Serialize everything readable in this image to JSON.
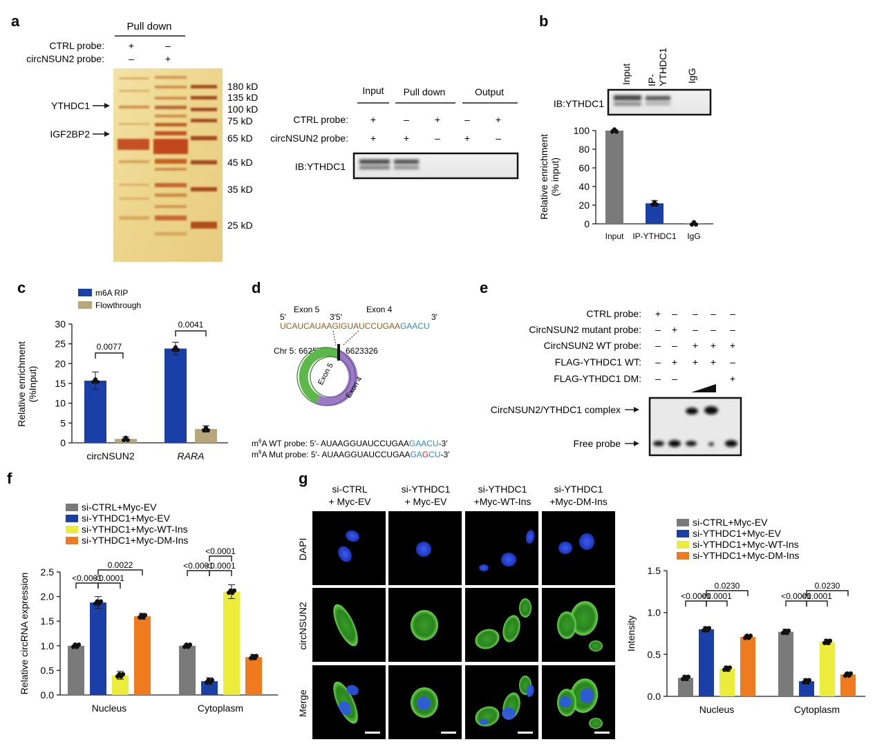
{
  "colors": {
    "gray": "#7a7a7a",
    "blue": "#1a3fa6",
    "yellow": "#ecec3a",
    "orange": "#f07b1f",
    "olive": "#b7a77a",
    "green": "#55c23a",
    "nucleus": "#2240d8",
    "seq_brown": "#9c5a1e",
    "seq_blue": "#2f86d6",
    "seq_red": "#e22222"
  },
  "panels": {
    "a": "a",
    "b": "b",
    "c": "c",
    "d": "d",
    "e": "e",
    "f": "f",
    "g": "g"
  },
  "a": {
    "pulldown_header": "Pull down",
    "ctrl_label": "CTRL probe:",
    "circ_label": "circNSUN2 probe:",
    "ctrl_signs": [
      "+",
      "–"
    ],
    "circ_signs": [
      "–",
      "+"
    ],
    "arrow_labels": [
      "YTHDC1",
      "IGF2BP2"
    ],
    "markers": [
      "180 kD",
      "135 kD",
      "100 kD",
      "75 kD",
      "65 kD",
      "45 kD",
      "35 kD",
      "25 kD"
    ],
    "blot_cols": [
      "Input",
      "Pull down",
      "Output"
    ],
    "blot_rows": [
      {
        "label": "CTRL probe:",
        "signs": [
          "+",
          "–",
          "+",
          "–",
          "+"
        ]
      },
      {
        "label": "circNSUN2 probe:",
        "signs": [
          "+",
          "+",
          "–",
          "+",
          "–"
        ]
      }
    ],
    "ib": "IB:YTHDC1"
  },
  "b": {
    "lanes": [
      "Input",
      "IP-\nYTHDC1",
      "IgG"
    ],
    "ib": "IB:YTHDC1",
    "chart_data": {
      "type": "bar",
      "categories": [
        "Input",
        "IP-YTHDC1",
        "IgG"
      ],
      "values": [
        100,
        22,
        0.5
      ],
      "ylabel": "Relative enrichment\n(% input)",
      "ylim": [
        0,
        100
      ],
      "yticks": [
        0,
        20,
        40,
        60,
        80,
        100
      ]
    }
  },
  "c": {
    "chart_data": {
      "type": "bar",
      "categories": [
        "circNSUN2",
        "RARA"
      ],
      "series": [
        {
          "name": "m6A RIP",
          "values": [
            15.7,
            23.8
          ]
        },
        {
          "name": "Flowthrough",
          "values": [
            1.0,
            3.5
          ]
        }
      ],
      "ylabel": "Relative enrichment\n(%Input)",
      "ylim": [
        0,
        30
      ],
      "yticks": [
        0,
        5,
        10,
        15,
        20,
        25,
        30
      ],
      "pvalues": [
        "0.0077",
        "0.0041"
      ]
    }
  },
  "d": {
    "exon5": "Exon 5",
    "exon4": "Exon 4",
    "p5": "5′",
    "p35": "3′5′",
    "p3": "3′",
    "seq_brown": "UCAUCAUAAGIGUAUCCUGAA",
    "seq_blue": "GAACU",
    "chr_left": "Chr 5: 6625782",
    "chr_right": "6623326",
    "ring_exon5": "Exon 5",
    "ring_exon4": "Exon 4",
    "wt_label_pre": "m",
    "wt_label_sup": "6",
    "wt_label_post": "A WT probe: 5′- AUAAGGUAUCCUGAA",
    "wt_blue": "GAACU",
    "wt_end": "-3′",
    "mut_label_post": "A Mut probe: 5′- AUAAGGUAUCCUGAA",
    "mut_ga": "GA",
    "mut_g": "G",
    "mut_cu": "CU",
    "mut_end": "-3′"
  },
  "e": {
    "rows": [
      {
        "label": "CTRL probe:",
        "signs": [
          "+",
          "–",
          "–",
          "–",
          "–"
        ]
      },
      {
        "label": "CircNSUN2 mutant probe:",
        "signs": [
          "–",
          "+",
          "–",
          "–",
          "–"
        ]
      },
      {
        "label": "CircNSUN2 WT probe:",
        "signs": [
          "–",
          "–",
          "+",
          "+",
          "+"
        ]
      },
      {
        "label": "FLAG-YTHDC1 WT:",
        "signs": [
          "–",
          "+",
          "+",
          "+",
          "–"
        ]
      },
      {
        "label": "FLAG-YTHDC1 DM:",
        "signs": [
          "–",
          "–",
          "",
          "",
          "+"
        ]
      }
    ],
    "complex_label": "CircNSUN2/YTHDC1 complex",
    "free_label": "Free probe"
  },
  "f": {
    "legend": [
      "si-CTRL+Myc-EV",
      "si-YTHDC1+Myc-EV",
      "si-YTHDC1+Myc-WT-Ins",
      "si-YTHDC1+Myc-DM-Ins"
    ],
    "chart_data": {
      "type": "bar",
      "categories": [
        "Nucleus",
        "Cytoplasm"
      ],
      "series": [
        {
          "name": "si-CTRL+Myc-EV",
          "values": [
            1.0,
            1.0
          ]
        },
        {
          "name": "si-YTHDC1+Myc-EV",
          "values": [
            1.88,
            0.28
          ]
        },
        {
          "name": "si-YTHDC1+Myc-WT-Ins",
          "values": [
            0.4,
            2.1
          ]
        },
        {
          "name": "si-YTHDC1+Myc-DM-Ins",
          "values": [
            1.6,
            0.77
          ]
        }
      ],
      "ylabel": "Relative circRNA expression",
      "ylim": [
        0,
        2.5
      ],
      "yticks": [
        "0.0",
        "0.5",
        "1.0",
        "1.5",
        "2.0",
        "2.5"
      ],
      "pvalues": {
        "nucleus": [
          "<0.0001",
          "<0.0001",
          "0.0022"
        ],
        "cytoplasm": [
          "<0.0001",
          "<0.0001",
          "<0.0001"
        ]
      }
    }
  },
  "g": {
    "col_titles": [
      [
        "si-CTRL",
        "+ Myc-EV"
      ],
      [
        "si-YTHDC1",
        "+ Myc-EV"
      ],
      [
        "si-YTHDC1",
        "+Myc-WT-Ins"
      ],
      [
        "si-YTHDC1",
        "+Myc-DM-Ins"
      ]
    ],
    "row_labels": [
      "DAPI",
      "circNSUN2",
      "Merge"
    ],
    "legend": [
      "si-CTRL+Myc-EV",
      "si-YTHDC1+Myc-EV",
      "si-YTHDC1+Myc-WT-Ins",
      "si-YTHDC1+Myc-DM-Ins"
    ],
    "chart_data": {
      "type": "bar",
      "categories": [
        "Nucleus",
        "Cytoplasm"
      ],
      "series": [
        {
          "name": "si-CTRL+Myc-EV",
          "values": [
            0.22,
            0.77
          ]
        },
        {
          "name": "si-YTHDC1+Myc-EV",
          "values": [
            0.8,
            0.18
          ]
        },
        {
          "name": "si-YTHDC1+Myc-WT-Ins",
          "values": [
            0.33,
            0.65
          ]
        },
        {
          "name": "si-YTHDC1+Myc-DM-Ins",
          "values": [
            0.71,
            0.26
          ]
        }
      ],
      "ylabel": "Intensity",
      "ylim": [
        0,
        1.5
      ],
      "yticks": [
        "0.0",
        "0.5",
        "1.0",
        "1.5"
      ],
      "pvalues": {
        "nucleus": [
          "<0.0001",
          "<0.0001",
          "0.0230"
        ],
        "cytoplasm": [
          "<0.0001",
          "<0.0001",
          "0.0230"
        ]
      }
    }
  }
}
